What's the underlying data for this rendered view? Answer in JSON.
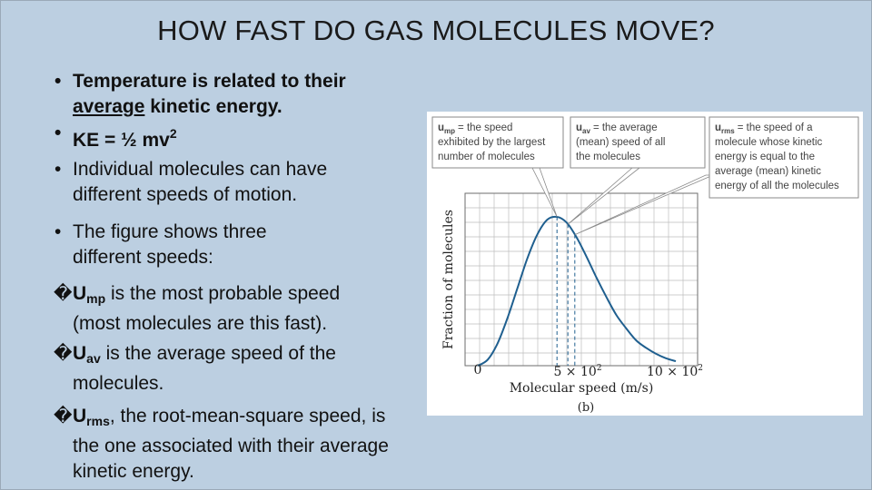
{
  "slide": {
    "title": "HOW FAST DO GAS MOLECULES MOVE?",
    "bullet_mark": "•",
    "box_mark": "�",
    "b1_line1": "Temperature is related to their",
    "b1_average": "average",
    "b1_line2_rest": " kinetic energy.",
    "b2_text": "KE = ½ mv",
    "b2_sup": "2",
    "b3_line1": "Individual molecules can have",
    "b3_line2": "different speeds of motion.",
    "b4_line1": "The figure shows three",
    "b4_line2": "different speeds:",
    "ump_symbol": "U",
    "ump_sub": "mp",
    "ump_line1_rest": " is the most probable speed",
    "ump_line2": "(most molecules are this fast).",
    "uav_symbol": "U",
    "uav_sub": "av",
    "uav_line1_rest": " is the average speed of the",
    "uav_line2": "molecules.",
    "urms_symbol": "U",
    "urms_sub": "rms",
    "urms_line1_rest": ", the root-mean-square speed, is",
    "urms_line2": "the one associated with their average",
    "urms_line3": "kinetic energy."
  },
  "figure": {
    "callouts": [
      {
        "symbol": "u",
        "sub": "mp",
        "lines": [
          "= the speed",
          "exhibited by the largest",
          "number of molecules"
        ]
      },
      {
        "symbol": "u",
        "sub": "av",
        "lines": [
          "= the average",
          "(mean) speed of all",
          "the molecules"
        ]
      },
      {
        "symbol": "u",
        "sub": "rms",
        "lines": [
          "= the speed of a",
          "molecule whose kinetic",
          "energy is equal to the",
          "average (mean) kinetic",
          "energy of all the molecules"
        ]
      }
    ],
    "panel_label": "(b)",
    "colors": {
      "curve": "#1f5f8f",
      "callout_border": "#8a8a8a",
      "grid": "#bdbdbd"
    }
  },
  "chart_data": {
    "type": "line",
    "title": "",
    "xlabel": "Molecular speed (m/s)",
    "ylabel": "Fraction of molecules",
    "xlim": [
      0,
      1000
    ],
    "x_ticks": [
      "0",
      "5 × 10",
      "10 × 10"
    ],
    "x_tick_exponent": "2",
    "grid": true,
    "series": [
      {
        "x": [
          0,
          50,
          100,
          150,
          200,
          250,
          300,
          350,
          400,
          450,
          500,
          550,
          600,
          650,
          700,
          750,
          800,
          850,
          900,
          950,
          1000
        ],
        "values": [
          0.0,
          0.04,
          0.15,
          0.32,
          0.52,
          0.72,
          0.88,
          0.98,
          1.0,
          0.96,
          0.86,
          0.73,
          0.59,
          0.46,
          0.34,
          0.25,
          0.17,
          0.12,
          0.08,
          0.05,
          0.03
        ]
      }
    ],
    "markers": {
      "ump": 400,
      "uav": 455,
      "urms": 490
    }
  }
}
